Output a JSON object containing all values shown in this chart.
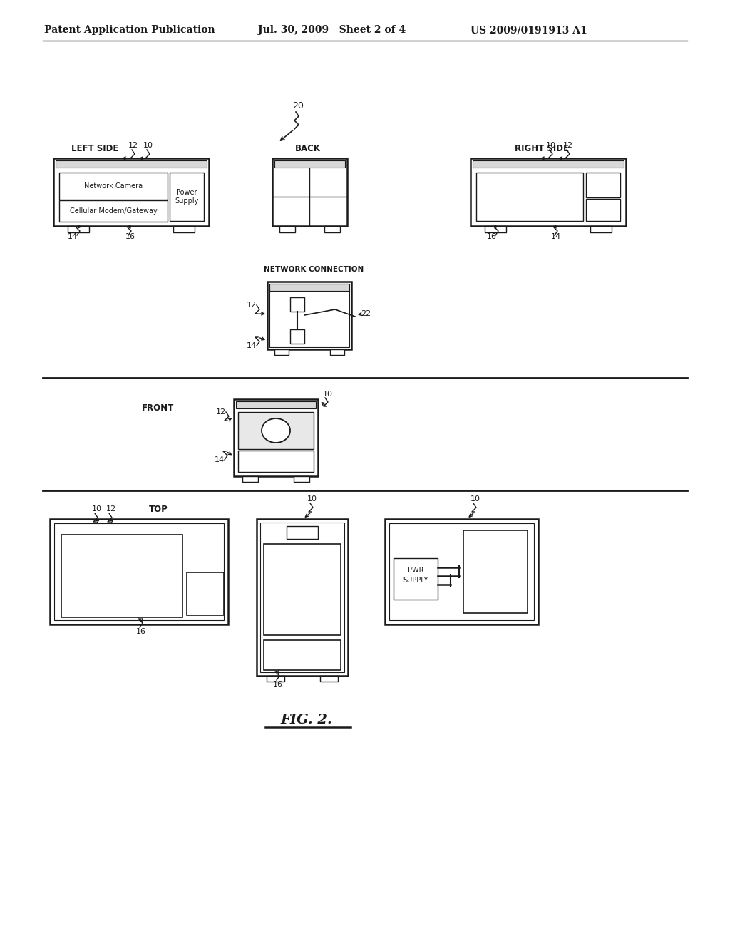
{
  "header_left": "Patent Application Publication",
  "header_mid": "Jul. 30, 2009   Sheet 2 of 4",
  "header_right": "US 2009/0191913 A1",
  "fig_label": "FIG. 2.",
  "bg_color": "#ffffff",
  "line_color": "#1a1a1a",
  "gray_fill": "#d8d8d8"
}
